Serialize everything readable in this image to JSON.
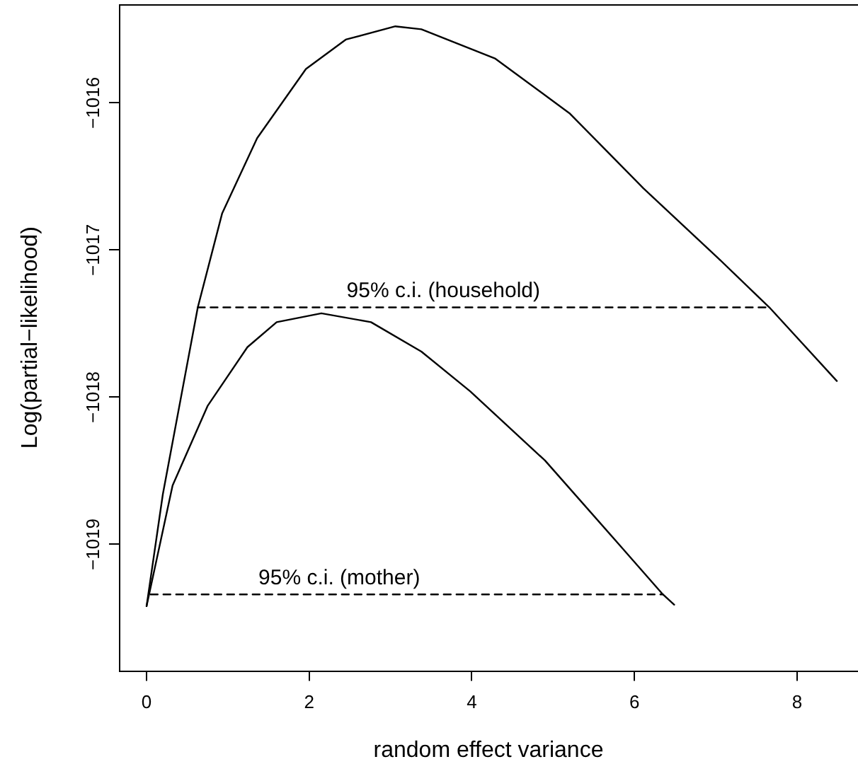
{
  "chart_data": {
    "type": "line",
    "xlabel": "random effect variance",
    "ylabel": "Log(partial−likelihood)",
    "xlim": [
      -0.34,
      8.75
    ],
    "ylim": [
      -1019.86,
      -1015.33
    ],
    "xticks": [
      0,
      2,
      4,
      6,
      8
    ],
    "yticks": [
      {
        "value": -1016,
        "label": "−1016"
      },
      {
        "value": -1017,
        "label": "−1017"
      },
      {
        "value": -1018,
        "label": "−1018"
      },
      {
        "value": -1019,
        "label": "−1019"
      }
    ],
    "grid": false,
    "legend": false,
    "marker": "none",
    "series": [
      {
        "color": "#000000",
        "line_style": "solid",
        "x": [
          0,
          0.2,
          0.63,
          0.93,
          1.36,
          1.96,
          2.45,
          3.06,
          3.38,
          4.29,
          5.2,
          6.11,
          7.02,
          7.66,
          8.49
        ],
        "values": [
          -1019.42,
          -1018.66,
          -1017.39,
          -1016.75,
          -1016.24,
          -1015.77,
          -1015.57,
          -1015.48,
          -1015.5,
          -1015.7,
          -1016.07,
          -1016.58,
          -1017.05,
          -1017.39,
          -1017.89
        ]
      },
      {
        "color": "#000000",
        "line_style": "solid",
        "x": [
          0,
          0.32,
          0.75,
          1.24,
          1.6,
          2.15,
          2.76,
          3.38,
          3.98,
          4.9,
          5.81,
          6.35,
          6.49
        ],
        "values": [
          -1019.42,
          -1018.6,
          -1018.06,
          -1017.66,
          -1017.49,
          -1017.43,
          -1017.49,
          -1017.69,
          -1017.96,
          -1018.43,
          -1019.0,
          -1019.34,
          -1019.41
        ]
      },
      {
        "color": "#000000",
        "line_style": "dashed",
        "x": [
          0.63,
          7.66
        ],
        "values": [
          -1017.39,
          -1017.39
        ]
      },
      {
        "color": "#000000",
        "line_style": "dashed",
        "x": [
          0.05,
          6.35
        ],
        "values": [
          -1019.34,
          -1019.34
        ]
      }
    ],
    "annotations": [
      {
        "text": "95% c.i. (household)",
        "x": 3.65,
        "y": -1017.39
      },
      {
        "text": "95% c.i. (mother)",
        "x": 2.37,
        "y": -1019.34
      }
    ]
  }
}
